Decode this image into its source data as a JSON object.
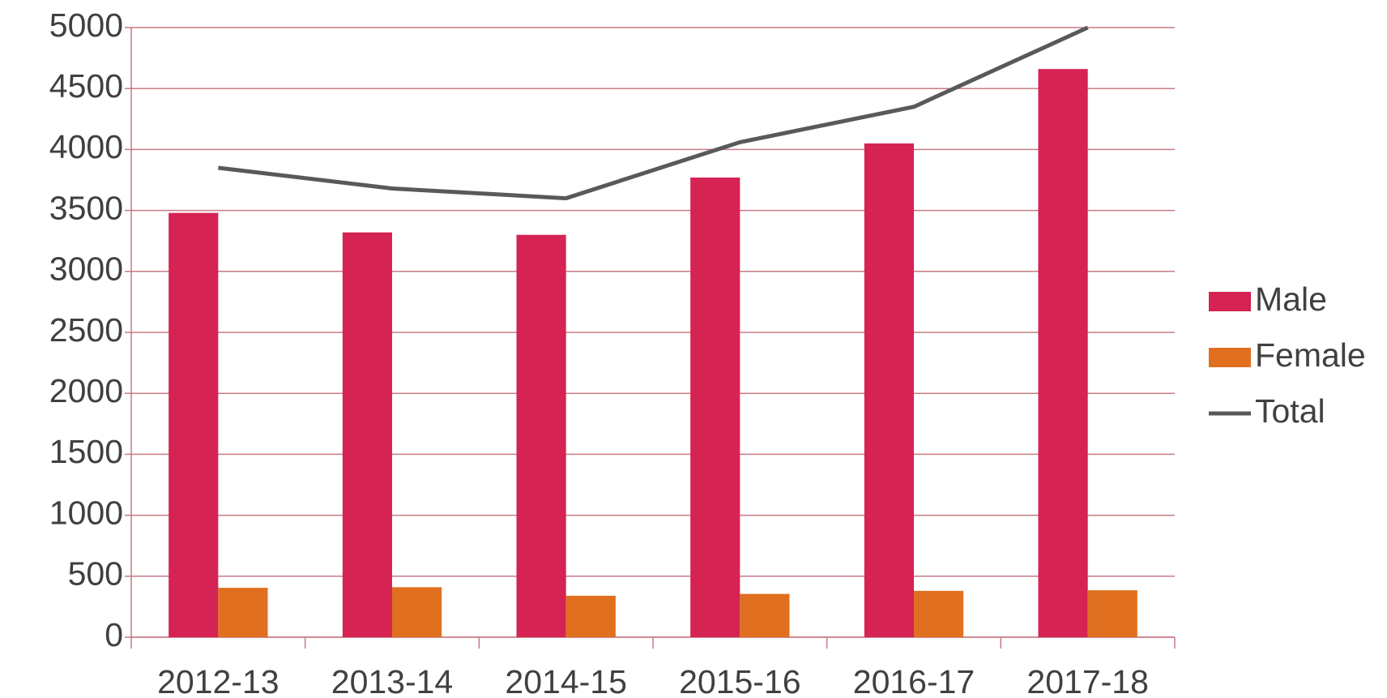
{
  "chart_data": {
    "type": "bar",
    "categories": [
      "2012-13",
      "2013-14",
      "2014-15",
      "2015-16",
      "2016-17",
      "2017-18"
    ],
    "series": [
      {
        "name": "Male",
        "type": "bar",
        "color": "#d52353",
        "values": [
          3480,
          3320,
          3300,
          3770,
          4050,
          4660
        ]
      },
      {
        "name": "Female",
        "type": "bar",
        "color": "#e07020",
        "values": [
          405,
          410,
          340,
          355,
          380,
          385
        ]
      },
      {
        "name": "Total",
        "type": "line",
        "color": "#595959",
        "values": [
          3850,
          3680,
          3600,
          4060,
          4350,
          5000
        ]
      }
    ],
    "ylim": [
      0,
      5000
    ],
    "yticks": [
      0,
      500,
      1000,
      1500,
      2000,
      2500,
      3000,
      3500,
      4000,
      4500,
      5000
    ],
    "grid": true,
    "legend": "right"
  }
}
